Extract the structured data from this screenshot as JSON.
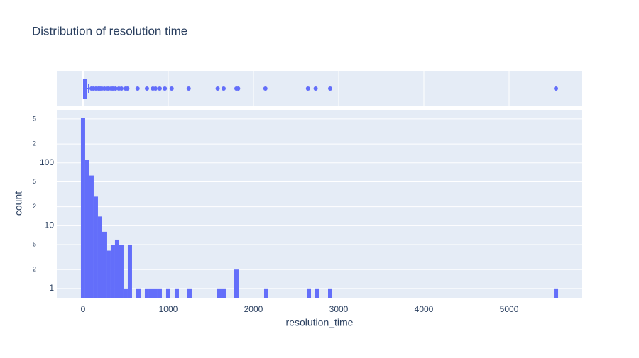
{
  "chart_data": {
    "type": "histogram",
    "title": "Distribution of resolution time",
    "xlabel": "resolution_time",
    "ylabel": "count",
    "color": "#636efa",
    "ylog": true,
    "grid": true,
    "xlim": [
      -308,
      5858
    ],
    "xticks": [
      0,
      1000,
      2000,
      3000,
      4000,
      5000
    ],
    "ylim": [
      0.71,
      700
    ],
    "yticks": [
      1,
      2,
      5,
      10,
      {
        "value": 20,
        "label": "2"
      },
      {
        "value": 50,
        "label": "5"
      },
      100,
      {
        "value": 200,
        "label": "2"
      },
      {
        "value": 500,
        "label": "5"
      }
    ],
    "bins": [
      -25,
      25,
      75,
      125,
      175,
      225,
      275,
      325,
      375,
      425,
      475,
      525,
      575,
      625,
      675,
      725,
      775,
      825,
      875,
      925,
      975,
      1025,
      1075,
      1125,
      1175,
      1225,
      1275,
      1325,
      1375,
      1425,
      1475,
      1525,
      1575,
      1625,
      1675,
      1725,
      1775,
      1825,
      1875,
      1925,
      1975,
      2025,
      2075,
      2125,
      2175,
      2225,
      2275,
      2325,
      2375,
      2425,
      2475,
      2525,
      2575,
      2625,
      2675,
      2725,
      2775,
      2825,
      2875,
      2925,
      2975,
      3025,
      3075,
      3125,
      3175,
      3225,
      3275,
      3325,
      3375,
      3425,
      3475,
      3525,
      3575,
      3625,
      3675,
      3725,
      3775,
      3825,
      3875,
      3925,
      3975,
      4025,
      4075,
      4125,
      4175,
      4225,
      4275,
      4325,
      4375,
      4425,
      4475,
      4525,
      4575,
      4625,
      4675,
      4725,
      4775,
      4825,
      4875,
      4925,
      4975,
      5025,
      5075,
      5125,
      5175,
      5225,
      5275,
      5325,
      5375,
      5425,
      5475,
      5525,
      5575
    ],
    "counts": [
      514,
      111,
      63,
      29,
      14,
      8,
      4,
      5,
      6,
      5,
      1,
      5,
      0,
      1,
      0,
      1,
      1,
      1,
      1,
      0,
      1,
      0,
      1,
      0,
      0,
      1,
      0,
      0,
      0,
      0,
      0,
      0,
      1,
      1,
      0,
      0,
      2,
      0,
      0,
      0,
      0,
      0,
      0,
      1,
      0,
      0,
      0,
      0,
      0,
      0,
      0,
      0,
      0,
      1,
      0,
      1,
      0,
      0,
      1,
      0,
      0,
      0,
      0,
      0,
      0,
      0,
      0,
      0,
      0,
      0,
      0,
      0,
      0,
      0,
      0,
      0,
      0,
      0,
      0,
      0,
      0,
      0,
      0,
      0,
      0,
      0,
      0,
      0,
      0,
      0,
      0,
      0,
      0,
      0,
      0,
      0,
      0,
      0,
      0,
      0,
      0,
      0,
      0,
      0,
      0,
      0,
      0,
      0,
      0,
      0,
      0,
      1
    ],
    "box": {
      "lowerfence": 0,
      "q1": 8,
      "median": 20,
      "q3": 35,
      "upperfence": 67,
      "outliers": [
        100,
        120,
        150,
        180,
        200,
        220,
        250,
        280,
        300,
        330,
        350,
        380,
        420,
        450,
        500,
        520,
        640,
        750,
        820,
        850,
        900,
        960,
        1040,
        1240,
        1580,
        1650,
        1800,
        1820,
        2140,
        2640,
        2730,
        2900,
        5550
      ]
    }
  }
}
